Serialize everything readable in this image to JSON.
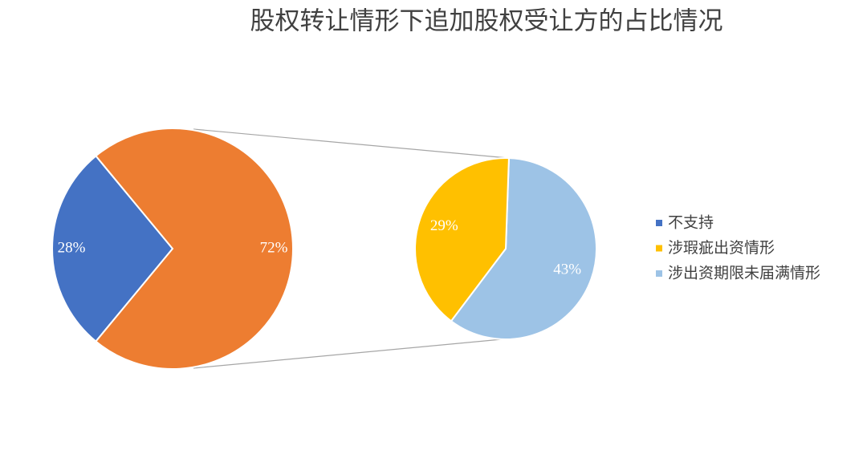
{
  "chart_data": {
    "type": "pie-of-pie",
    "title": "股权转让情形下追加股权受让方的占比情况",
    "categories": [
      "不支持",
      "涉瑕疵出资情形",
      "涉出资期限未届满情形"
    ],
    "values": [
      28,
      29,
      43
    ],
    "value_labels": [
      "28%",
      "29%",
      "43%"
    ],
    "colors": [
      "#4472c4",
      "#ffc000",
      "#9dc3e6"
    ],
    "secondary_count": 2,
    "other_value": 72,
    "other_label": "72%",
    "other_color": "#ed7d31",
    "legend": "right"
  }
}
